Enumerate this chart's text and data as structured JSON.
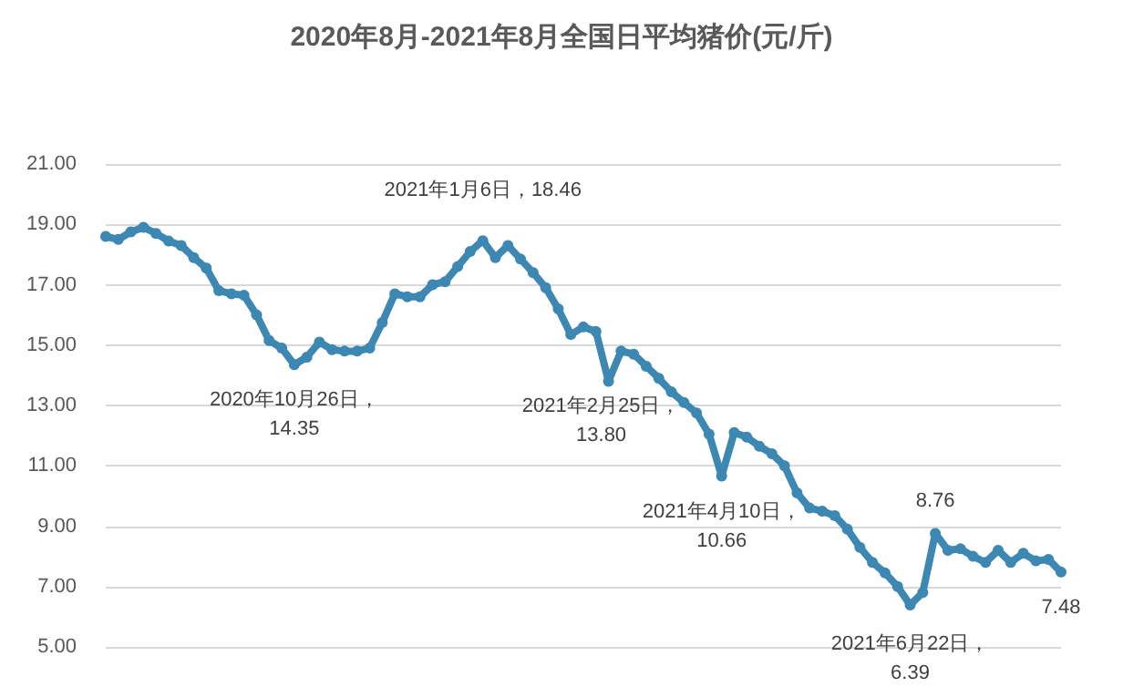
{
  "chart_data": {
    "type": "line",
    "title": "2020年8月-2021年8月全国日平均猪价(元/斤)",
    "categories": [
      null,
      null,
      null,
      null,
      null,
      null,
      null,
      null,
      null,
      null,
      null,
      null,
      null,
      null,
      null,
      null,
      null,
      null,
      null,
      null,
      null,
      null,
      null,
      null,
      null,
      null,
      null,
      null,
      null,
      null,
      null,
      null,
      null,
      null,
      null,
      null,
      null,
      null,
      null,
      null,
      null,
      null,
      null,
      null,
      null,
      null,
      null,
      null,
      null,
      null,
      null,
      null,
      null,
      null,
      null,
      null,
      null,
      null,
      null,
      null,
      null,
      null,
      null,
      null,
      null,
      null,
      null,
      null,
      null,
      null,
      null,
      null,
      null,
      null,
      null,
      null,
      null
    ],
    "series": [
      {
        "color": "#3d88b3",
        "values": [
          18.6,
          18.5,
          18.75,
          18.9,
          18.7,
          18.45,
          18.3,
          17.9,
          17.55,
          16.8,
          16.7,
          16.65,
          16.0,
          15.15,
          14.9,
          14.35,
          14.6,
          15.1,
          14.85,
          14.8,
          14.8,
          14.9,
          15.75,
          16.7,
          16.6,
          16.6,
          17.0,
          17.1,
          17.6,
          18.1,
          18.46,
          17.9,
          18.3,
          17.85,
          17.4,
          16.9,
          16.2,
          15.35,
          15.6,
          15.45,
          13.8,
          14.8,
          14.7,
          14.3,
          13.9,
          13.45,
          13.1,
          12.75,
          12.05,
          10.66,
          12.1,
          11.95,
          11.65,
          11.4,
          11.0,
          10.1,
          9.6,
          9.5,
          9.35,
          8.9,
          8.3,
          7.8,
          7.45,
          7.0,
          6.39,
          6.8,
          8.76,
          8.2,
          8.25,
          8.0,
          7.8,
          8.2,
          7.8,
          8.1,
          7.85,
          7.9,
          7.48
        ]
      }
    ],
    "ylim": [
      5,
      21
    ],
    "yticks": [
      {
        "value": 5,
        "label": "5.00"
      },
      {
        "value": 7,
        "label": "7.00"
      },
      {
        "value": 9,
        "label": "9.00"
      },
      {
        "value": 11,
        "label": "11.00"
      },
      {
        "value": 13,
        "label": "13.00"
      },
      {
        "value": 15,
        "label": "15.00"
      },
      {
        "value": 17,
        "label": "17.00"
      },
      {
        "value": 19,
        "label": "19.00"
      },
      {
        "value": 21,
        "label": "21.00"
      }
    ],
    "tick_labels": "y",
    "grid": "y",
    "marker": "circle",
    "annotations": [
      {
        "text": "2020年10月26日，\n14.35",
        "y": 14.35
      },
      {
        "text": "2021年1月6日，18.46",
        "y": 18.46
      },
      {
        "text": "2021年2月25日，\n13.80",
        "y": 13.8
      },
      {
        "text": "2021年4月10日，\n10.66",
        "y": 10.66
      },
      {
        "text": "2021年6月22日，\n6.39",
        "y": 6.39
      },
      {
        "text": "8.76",
        "y": 8.76
      },
      {
        "text": "7.48",
        "y": 7.48
      }
    ]
  }
}
